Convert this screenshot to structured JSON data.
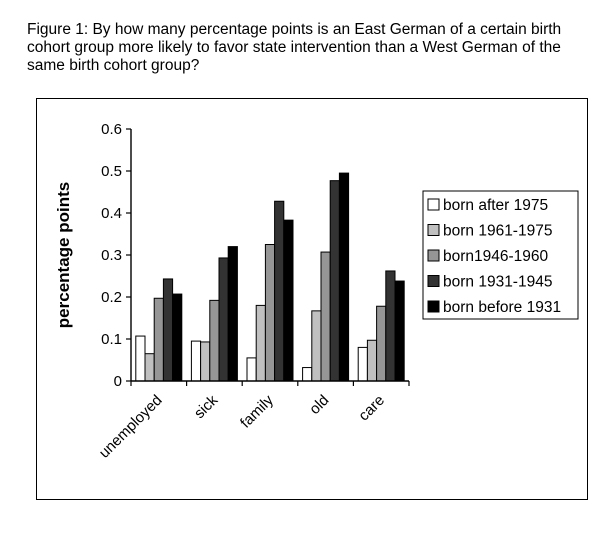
{
  "caption": {
    "lines": [
      "Figure 1: By how many percentage points is an East German of a certain birth",
      "cohort group more likely to favor state intervention than a West German of the",
      "same birth cohort group?"
    ]
  },
  "chart_data": {
    "type": "bar",
    "title": "",
    "xlabel": "",
    "ylabel": "percentage points",
    "ylim": [
      0,
      0.6
    ],
    "yticks": [
      "0",
      "0.1",
      "0.2",
      "0.3",
      "0.4",
      "0.5",
      "0.6"
    ],
    "ytick_values": [
      0,
      0.1,
      0.2,
      0.3,
      0.4,
      0.5,
      0.6
    ],
    "grid": false,
    "legend_position": "right",
    "categories": [
      "unemployed",
      "sick",
      "family",
      "old",
      "care"
    ],
    "series": [
      {
        "name": "born after 1975",
        "color": "#ffffff",
        "values": [
          0.107,
          0.095,
          0.055,
          0.032,
          0.08
        ]
      },
      {
        "name": "born 1961-1975",
        "color": "#c0c0c0",
        "values": [
          0.065,
          0.093,
          0.18,
          0.167,
          0.097
        ]
      },
      {
        "name": "born1946-1960",
        "color": "#969696",
        "values": [
          0.197,
          0.192,
          0.325,
          0.307,
          0.178
        ]
      },
      {
        "name": "born 1931-1945",
        "color": "#333333",
        "values": [
          0.243,
          0.293,
          0.428,
          0.477,
          0.262
        ]
      },
      {
        "name": "born before 1931",
        "color": "#000000",
        "values": [
          0.207,
          0.32,
          0.383,
          0.495,
          0.238
        ]
      }
    ]
  }
}
